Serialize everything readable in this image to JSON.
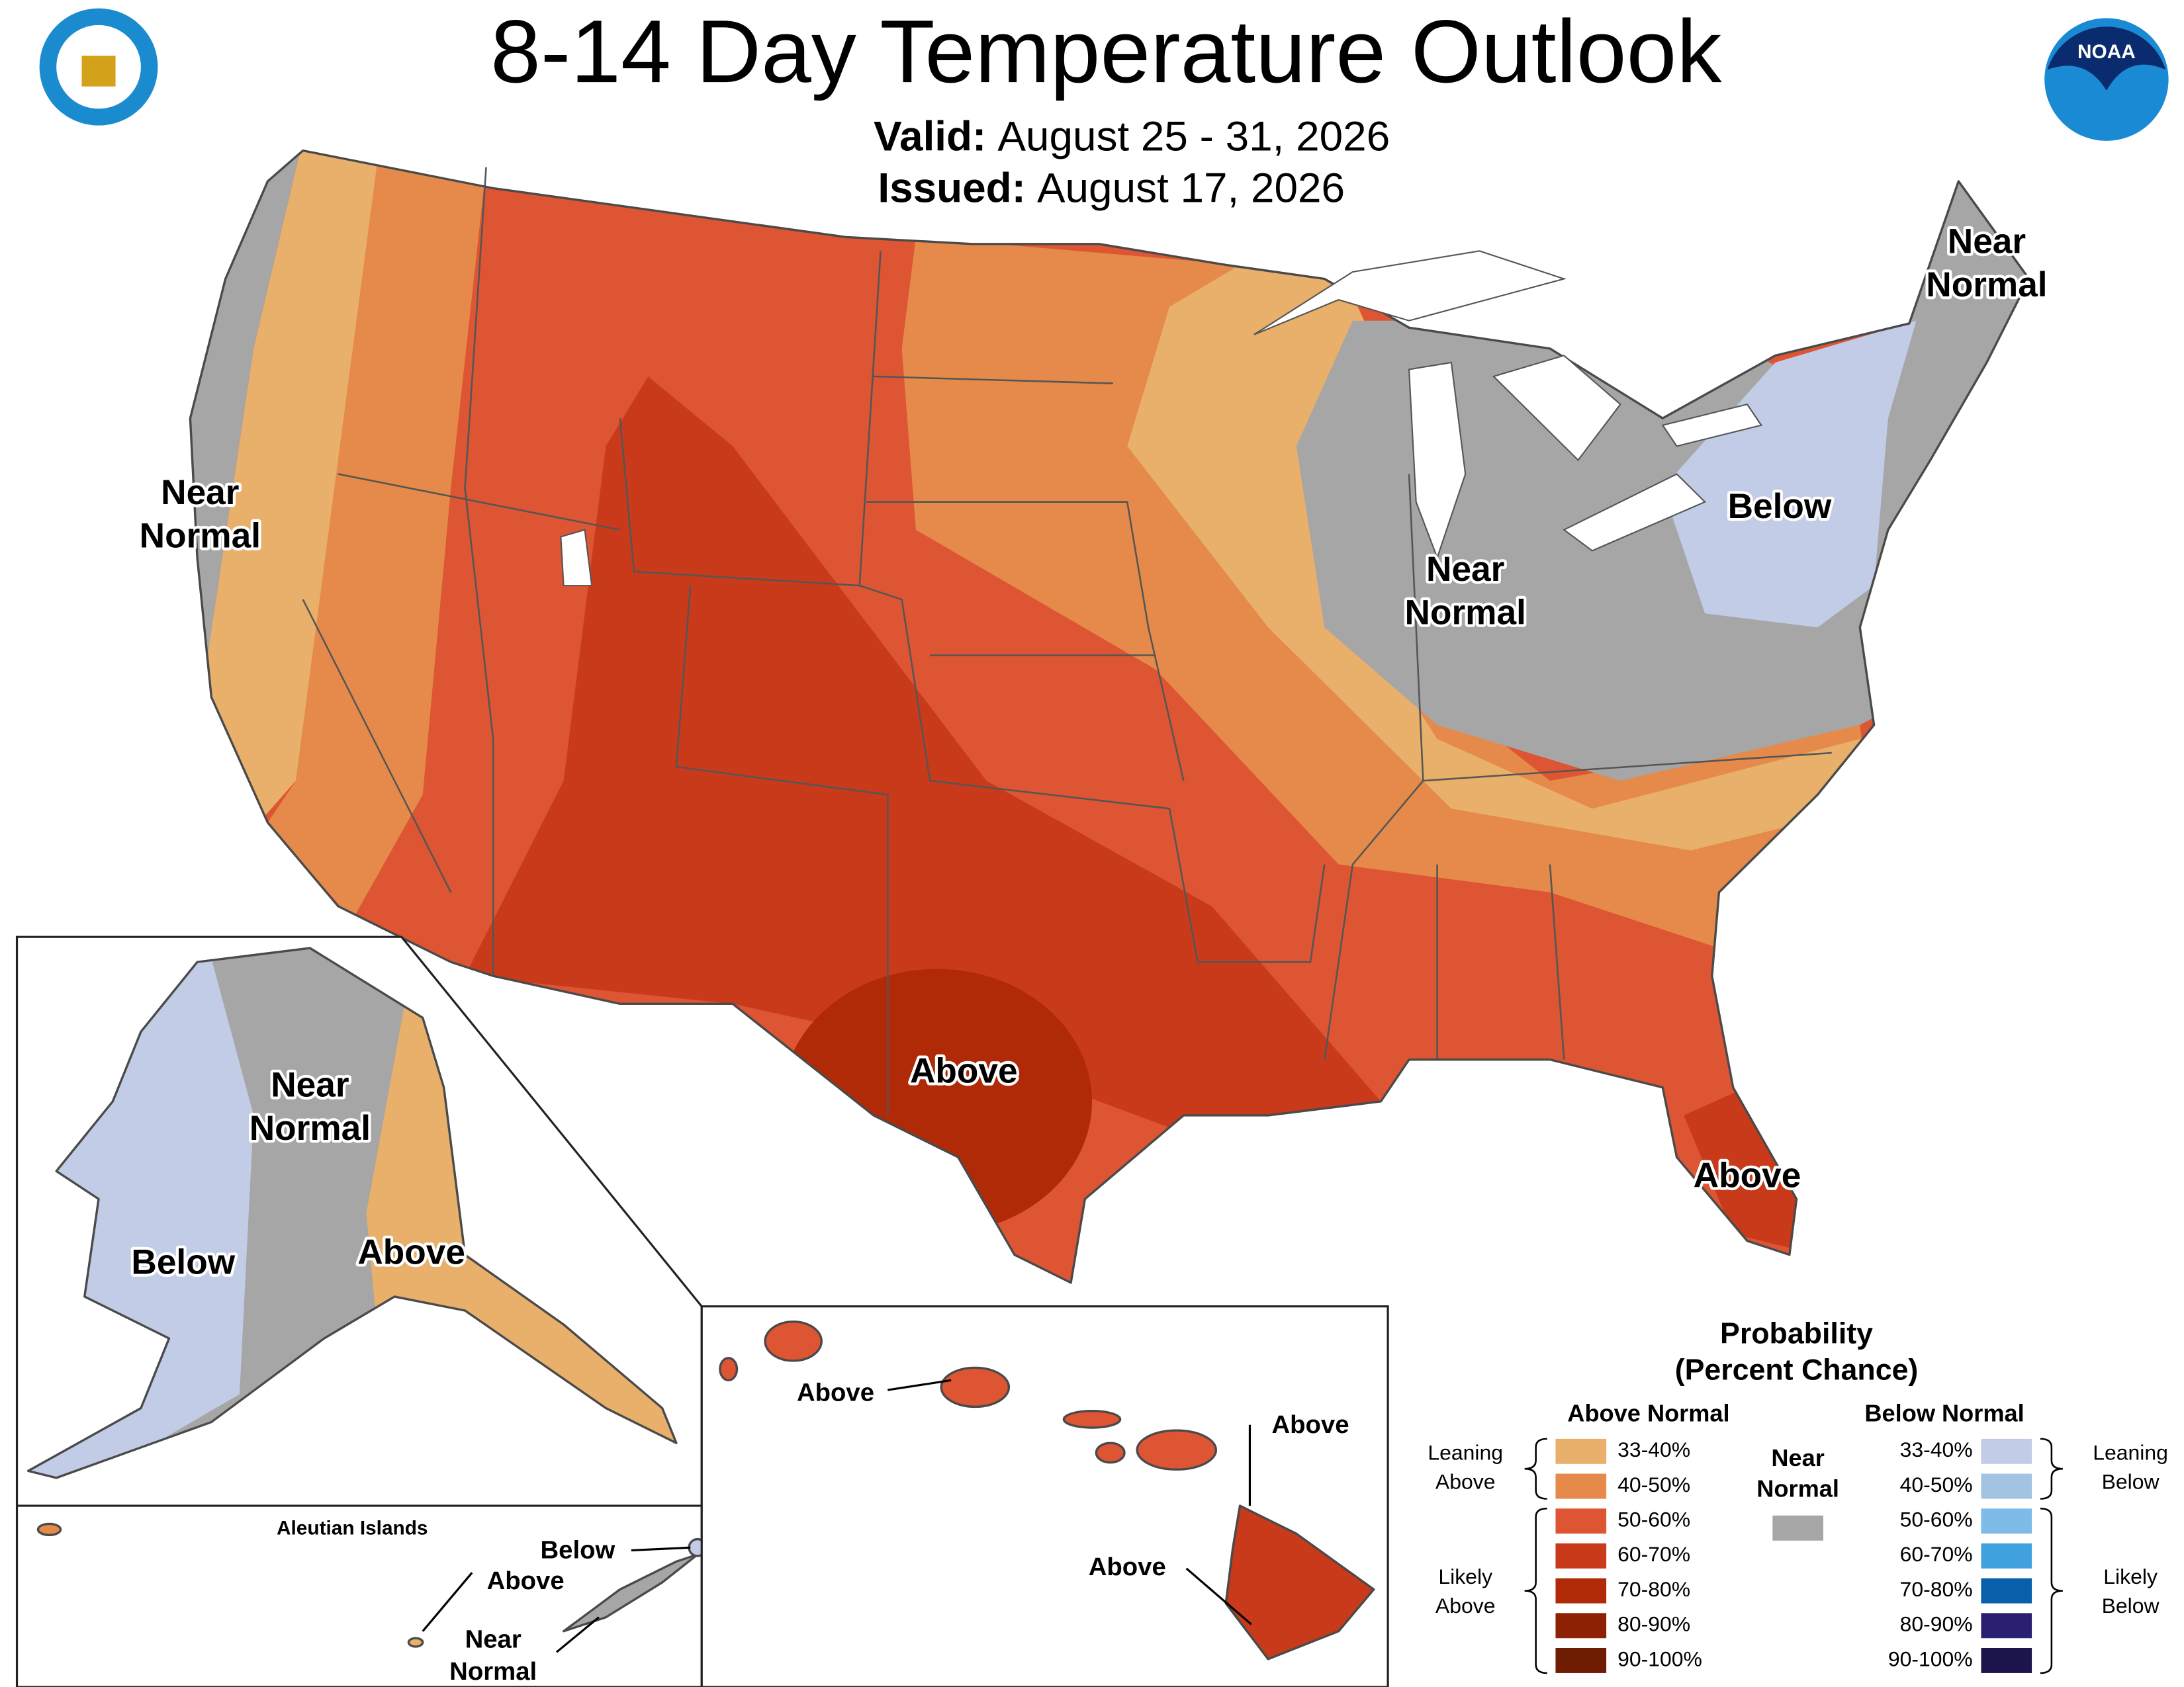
{
  "header": {
    "title": "8-14 Day Temperature Outlook",
    "valid_label": "Valid:",
    "valid": "August 25 - 31, 2026",
    "issued_label": "Issued:",
    "issued": "August 17, 2026"
  },
  "logos": {
    "noaa": "NOAA"
  },
  "map_labels": {
    "conus": [
      [
        "Near",
        "Normal"
      ],
      [
        "Near",
        "Normal"
      ],
      [
        "Below"
      ],
      [
        "Near",
        "Normal"
      ],
      [
        "Above"
      ],
      [
        "Above"
      ]
    ],
    "alaska": [
      [
        "Near",
        "Normal"
      ],
      [
        "Below"
      ],
      [
        "Above"
      ]
    ],
    "aleutian_title": "Aleutian Islands",
    "aleutian": [
      [
        "Below"
      ],
      [
        "Above"
      ],
      [
        "Near",
        "Normal"
      ]
    ],
    "hawaii": [
      [
        "Above"
      ],
      [
        "Above"
      ],
      [
        "Above"
      ]
    ]
  },
  "legend": {
    "title": "Probability",
    "subtitle": "(Percent Chance)",
    "above": {
      "header": "Above Normal",
      "items": [
        {
          "label": "33-40%",
          "color": "#e8b06a"
        },
        {
          "label": "40-50%",
          "color": "#e58a4a"
        },
        {
          "label": "50-60%",
          "color": "#dd5532"
        },
        {
          "label": "60-70%",
          "color": "#c93a1b"
        },
        {
          "label": "70-80%",
          "color": "#b02a08"
        },
        {
          "label": "80-90%",
          "color": "#8c2203"
        },
        {
          "label": "90-100%",
          "color": "#6e1c02"
        }
      ]
    },
    "below": {
      "header": "Below Normal",
      "items": [
        {
          "label": "33-40%",
          "color": "#c2cce6"
        },
        {
          "label": "40-50%",
          "color": "#a3c3e3"
        },
        {
          "label": "50-60%",
          "color": "#7fbbe8"
        },
        {
          "label": "60-70%",
          "color": "#41a0de"
        },
        {
          "label": "70-80%",
          "color": "#0960aa"
        },
        {
          "label": "80-90%",
          "color": "#2a2070"
        },
        {
          "label": "90-100%",
          "color": "#1b154c"
        }
      ]
    },
    "near": {
      "lines": [
        "Near",
        "Normal"
      ],
      "color": "#a6a6a6"
    },
    "groups": {
      "leaning_above": [
        "Leaning",
        "Above"
      ],
      "likely_above": [
        "Likely",
        "Above"
      ],
      "leaning_below": [
        "Leaning",
        "Below"
      ],
      "likely_below": [
        "Likely",
        "Below"
      ]
    }
  }
}
